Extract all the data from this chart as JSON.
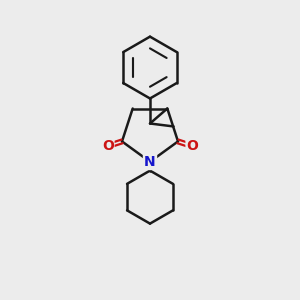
{
  "background_color": "#ececec",
  "bond_color": "#1a1a1a",
  "nitrogen_color": "#1414cc",
  "oxygen_color": "#cc1414",
  "line_width": 1.8,
  "fig_width": 3.0,
  "fig_height": 3.0,
  "xlim": [
    0,
    10
  ],
  "ylim": [
    0,
    10
  ]
}
